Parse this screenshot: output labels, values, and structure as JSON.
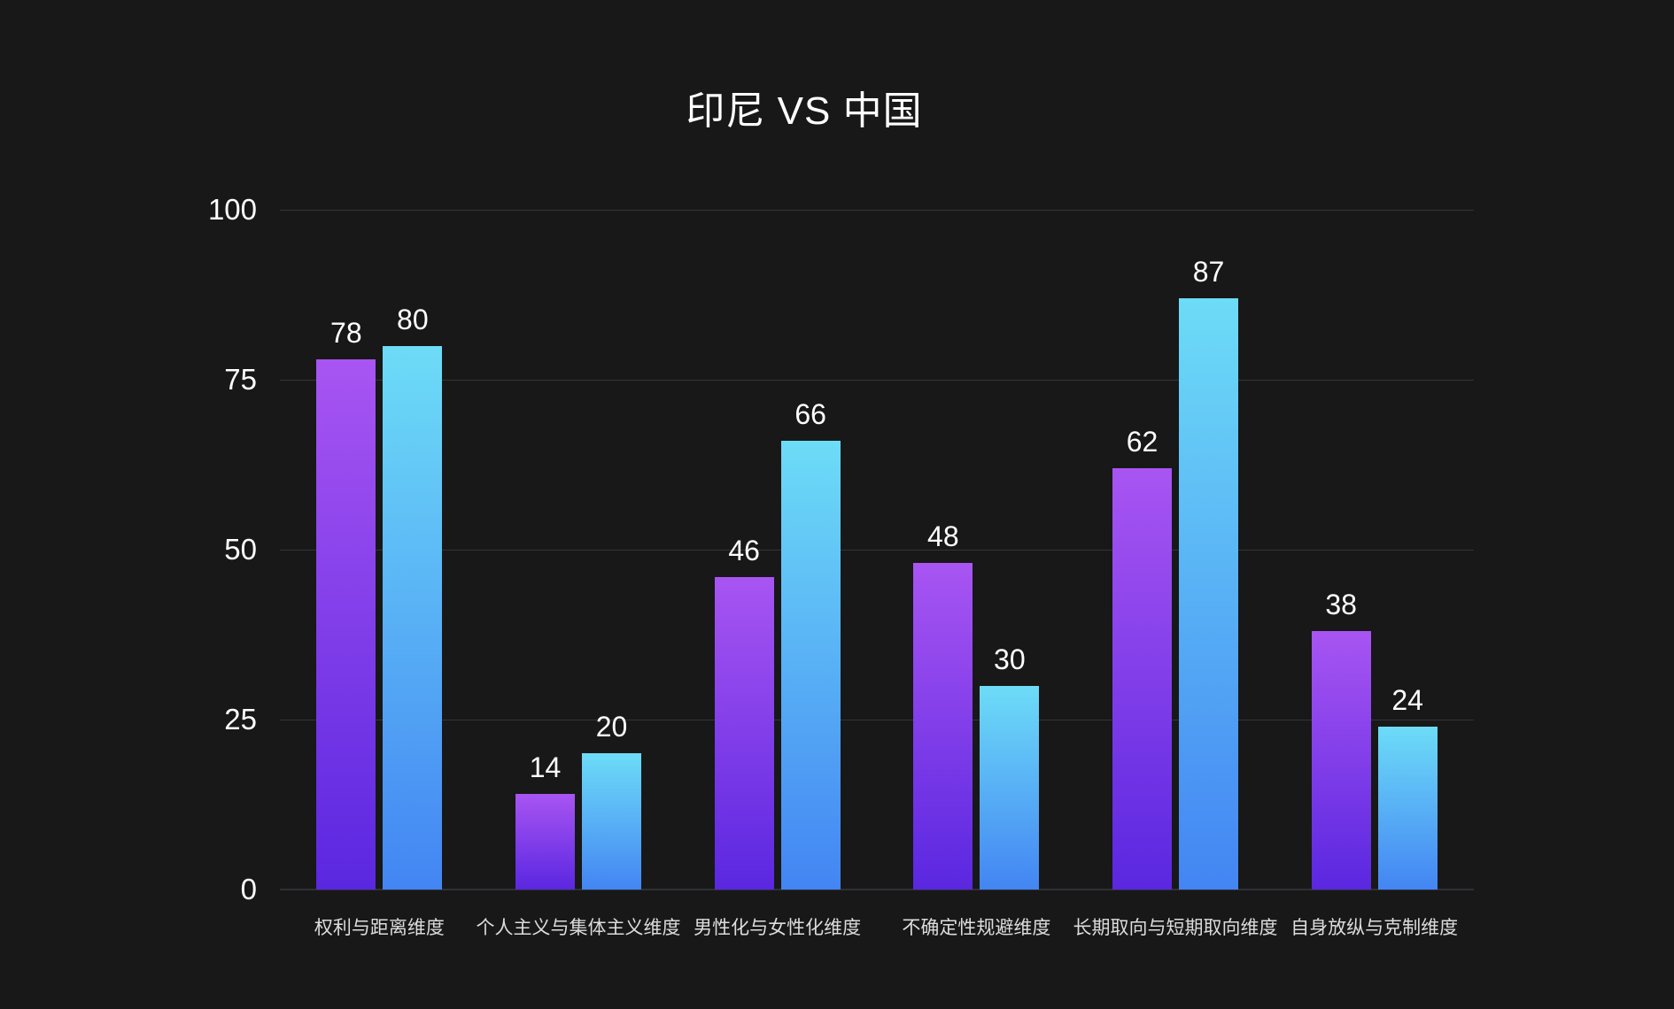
{
  "chart": {
    "title": "印尼 VS 中国"
  },
  "colors": {
    "background": "#181818",
    "gridline": "#35353b",
    "axis_line": "#303036",
    "title_text": "#ffffff",
    "tick_text": "#ffffff",
    "value_text": "#ffffff",
    "category_text": "#dddddd",
    "series1_gradient_top": "#a855f2",
    "series1_gradient_bottom": "#5a27e0",
    "series2_gradient_top": "#6ddcf7",
    "series2_gradient_bottom": "#4385f3"
  },
  "chart_data": {
    "type": "bar",
    "title": "印尼 VS 中国",
    "categories": [
      "权利与距离维度",
      "个人主义与集体主义维度",
      "男性化与女性化维度",
      "不确定性规避维度",
      "长期取向与短期取向维度",
      "自身放纵与克制维度"
    ],
    "series": [
      {
        "name": "印尼",
        "values": [
          78,
          14,
          46,
          48,
          62,
          38
        ],
        "color_top": "#a855f2",
        "color_bottom": "#5a27e0"
      },
      {
        "name": "中国",
        "values": [
          80,
          20,
          66,
          30,
          87,
          24
        ],
        "color_top": "#6ddcf7",
        "color_bottom": "#4385f3"
      }
    ],
    "xlabel": "",
    "ylabel": "",
    "ylim": [
      0,
      100
    ],
    "yticks": [
      0,
      25,
      50,
      75,
      100
    ],
    "grid": true,
    "legend_position": "none",
    "value_labels": true
  }
}
